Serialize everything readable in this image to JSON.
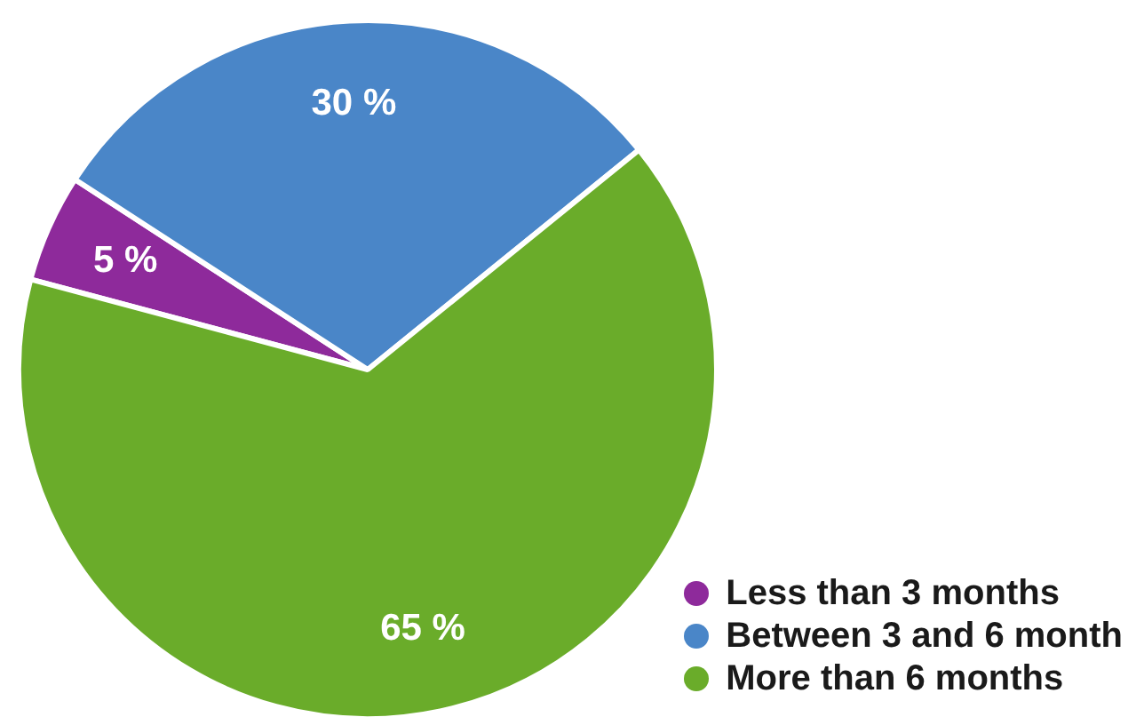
{
  "chart_data": {
    "type": "pie",
    "categories": [
      "Less than 3 months",
      "Between 3 and 6 month",
      "More than 6 months"
    ],
    "values": [
      5,
      30,
      65
    ],
    "colors": [
      "#8e2a9b",
      "#4a86c8",
      "#6aac2a"
    ],
    "value_labels": [
      "5 %",
      "30 %",
      "65 %"
    ],
    "legend": "bottom right"
  }
}
